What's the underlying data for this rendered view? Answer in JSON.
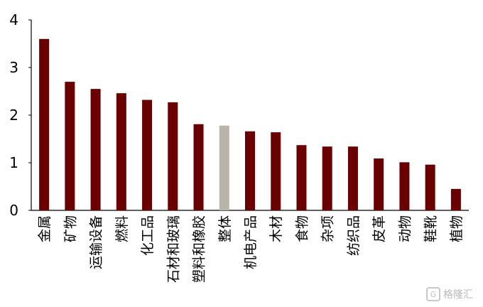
{
  "chart_data": {
    "type": "bar",
    "title": "",
    "xlabel": "",
    "ylabel": "",
    "ylim": [
      0,
      4
    ],
    "yticks": [
      0,
      1,
      2,
      3,
      4
    ],
    "grid": false,
    "categories": [
      "金属",
      "矿物",
      "运输设备",
      "燃料",
      "化工品",
      "石材和玻璃",
      "塑料和橡胶",
      "整体",
      "机电产品",
      "木材",
      "食物",
      "杂项",
      "纺织品",
      "皮革",
      "动物",
      "鞋靴",
      "植物"
    ],
    "values": [
      3.6,
      2.7,
      2.55,
      2.46,
      2.32,
      2.27,
      1.81,
      1.78,
      1.66,
      1.64,
      1.37,
      1.34,
      1.34,
      1.09,
      1.01,
      0.96,
      0.45
    ],
    "colors": {
      "default": "#6b0000",
      "highlight": "#b8b4a9",
      "highlight_category": "整体"
    }
  },
  "watermark": {
    "text": "格隆汇",
    "icon": "watermark-logo-icon"
  }
}
